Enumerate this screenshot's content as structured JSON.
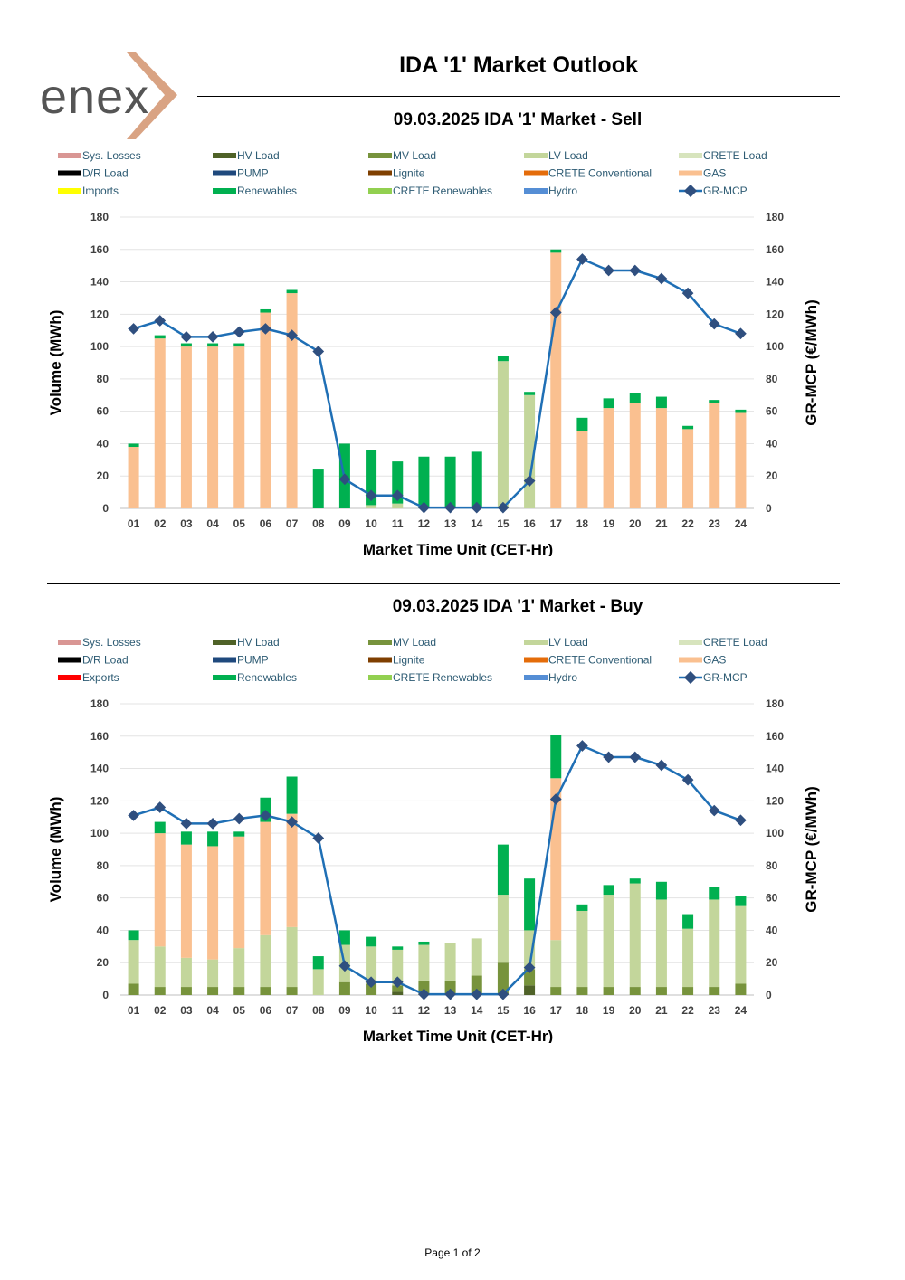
{
  "header": {
    "brand": "enex",
    "title": "IDA '1' Market Outlook",
    "footer": "Page 1 of 2"
  },
  "colors": {
    "sys_losses": "#d99694",
    "hv_load": "#4f6228",
    "mv_load": "#77933c",
    "lv_load": "#c3d69b",
    "crete_load": "#d7e4bd",
    "dr_load": "#000000",
    "pump": "#1f497d",
    "lignite": "#7f3f00",
    "crete_conventional": "#e46c0a",
    "gas": "#fac090",
    "imports": "#ffff00",
    "exports": "#ff0000",
    "renewables": "#00b050",
    "crete_renewables": "#92d050",
    "hydro": "#558ed5",
    "mcp_line": "#1f6fb5",
    "mcp_marker": "#2f4f7f",
    "logo_orange": "#d9a383",
    "logo_gray": "#555555"
  },
  "chart_data": [
    {
      "type": "bar",
      "title": "09.03.2025  IDA '1' Market - Sell",
      "xlabel": "Market Time Unit (CET-Hr)",
      "ylabel": "Volume (MWh)",
      "y2label": "GR-MCP (€/MWh)",
      "ylim": [
        0,
        180
      ],
      "y2lim": [
        0,
        180
      ],
      "yticks": [
        0,
        20,
        40,
        60,
        80,
        100,
        120,
        140,
        160,
        180
      ],
      "legend": [
        {
          "name": "Sys. Losses",
          "color": "#d99694",
          "kind": "bar"
        },
        {
          "name": "HV Load",
          "color": "#4f6228",
          "kind": "bar"
        },
        {
          "name": "MV Load",
          "color": "#77933c",
          "kind": "bar"
        },
        {
          "name": "LV Load",
          "color": "#c3d69b",
          "kind": "bar"
        },
        {
          "name": "CRETE Load",
          "color": "#d7e4bd",
          "kind": "bar"
        },
        {
          "name": "D/R Load",
          "color": "#000000",
          "kind": "bar"
        },
        {
          "name": "PUMP",
          "color": "#1f497d",
          "kind": "bar"
        },
        {
          "name": "Lignite",
          "color": "#7f3f00",
          "kind": "bar"
        },
        {
          "name": "CRETE Conventional",
          "color": "#e46c0a",
          "kind": "bar"
        },
        {
          "name": "GAS",
          "color": "#fac090",
          "kind": "bar"
        },
        {
          "name": "Imports",
          "color": "#ffff00",
          "kind": "bar"
        },
        {
          "name": "Renewables",
          "color": "#00b050",
          "kind": "bar"
        },
        {
          "name": "CRETE Renewables",
          "color": "#92d050",
          "kind": "bar"
        },
        {
          "name": "Hydro",
          "color": "#558ed5",
          "kind": "bar"
        },
        {
          "name": "GR-MCP",
          "color": "#1f6fb5",
          "kind": "line"
        }
      ],
      "categories": [
        "01",
        "02",
        "03",
        "04",
        "05",
        "06",
        "07",
        "08",
        "09",
        "10",
        "11",
        "12",
        "13",
        "14",
        "15",
        "16",
        "17",
        "18",
        "19",
        "20",
        "21",
        "22",
        "23",
        "24"
      ],
      "series": [
        {
          "name": "LV Load",
          "color": "#c3d69b",
          "values": [
            0,
            0,
            0,
            0,
            0,
            0,
            0,
            0,
            0,
            2,
            3,
            0,
            0,
            0,
            91,
            70,
            0,
            0,
            0,
            0,
            0,
            0,
            0,
            0
          ]
        },
        {
          "name": "GAS",
          "color": "#fac090",
          "values": [
            38,
            105,
            100,
            100,
            100,
            121,
            133,
            0,
            0,
            0,
            0,
            0,
            0,
            0,
            0,
            0,
            158,
            48,
            62,
            65,
            62,
            49,
            65,
            59
          ]
        },
        {
          "name": "Renewables",
          "color": "#00b050",
          "values": [
            2,
            2,
            2,
            2,
            2,
            2,
            2,
            24,
            40,
            34,
            26,
            32,
            32,
            35,
            3,
            2,
            2,
            8,
            6,
            6,
            7,
            2,
            2,
            2
          ]
        }
      ],
      "line": {
        "name": "GR-MCP",
        "values": [
          111,
          116,
          106,
          106,
          109,
          111,
          107,
          97,
          18,
          8,
          8,
          0.5,
          0.5,
          0.5,
          0.5,
          17,
          121,
          154,
          147,
          147,
          142,
          133,
          114,
          108
        ]
      }
    },
    {
      "type": "bar",
      "title": "09.03.2025  IDA '1' Market - Buy",
      "xlabel": "Market Time Unit (CET-Hr)",
      "ylabel": "Volume (MWh)",
      "y2label": "GR-MCP (€/MWh)",
      "ylim": [
        0,
        180
      ],
      "y2lim": [
        0,
        180
      ],
      "yticks": [
        0,
        20,
        40,
        60,
        80,
        100,
        120,
        140,
        160,
        180
      ],
      "legend": [
        {
          "name": "Sys. Losses",
          "color": "#d99694",
          "kind": "bar"
        },
        {
          "name": "HV Load",
          "color": "#4f6228",
          "kind": "bar"
        },
        {
          "name": "MV Load",
          "color": "#77933c",
          "kind": "bar"
        },
        {
          "name": "LV Load",
          "color": "#c3d69b",
          "kind": "bar"
        },
        {
          "name": "CRETE Load",
          "color": "#d7e4bd",
          "kind": "bar"
        },
        {
          "name": "D/R Load",
          "color": "#000000",
          "kind": "bar"
        },
        {
          "name": "PUMP",
          "color": "#1f497d",
          "kind": "bar"
        },
        {
          "name": "Lignite",
          "color": "#7f3f00",
          "kind": "bar"
        },
        {
          "name": "CRETE Conventional",
          "color": "#e46c0a",
          "kind": "bar"
        },
        {
          "name": "GAS",
          "color": "#fac090",
          "kind": "bar"
        },
        {
          "name": "Exports",
          "color": "#ff0000",
          "kind": "bar"
        },
        {
          "name": "Renewables",
          "color": "#00b050",
          "kind": "bar"
        },
        {
          "name": "CRETE Renewables",
          "color": "#92d050",
          "kind": "bar"
        },
        {
          "name": "Hydro",
          "color": "#558ed5",
          "kind": "bar"
        },
        {
          "name": "GR-MCP",
          "color": "#1f6fb5",
          "kind": "line"
        }
      ],
      "categories": [
        "01",
        "02",
        "03",
        "04",
        "05",
        "06",
        "07",
        "08",
        "09",
        "10",
        "11",
        "12",
        "13",
        "14",
        "15",
        "16",
        "17",
        "18",
        "19",
        "20",
        "21",
        "22",
        "23",
        "24"
      ],
      "series": [
        {
          "name": "HV Load",
          "color": "#4f6228",
          "values": [
            0,
            0,
            0,
            0,
            0,
            0,
            0,
            0,
            0,
            0,
            2,
            0,
            0,
            0,
            0,
            6,
            0,
            0,
            0,
            0,
            0,
            0,
            0,
            0
          ]
        },
        {
          "name": "MV Load",
          "color": "#77933c",
          "values": [
            7,
            5,
            5,
            5,
            5,
            5,
            5,
            0,
            8,
            7,
            4,
            9,
            9,
            12,
            20,
            10,
            5,
            5,
            5,
            5,
            5,
            5,
            5,
            7
          ]
        },
        {
          "name": "LV Load",
          "color": "#c3d69b",
          "values": [
            27,
            25,
            18,
            17,
            24,
            32,
            37,
            16,
            23,
            23,
            22,
            22,
            23,
            23,
            42,
            24,
            29,
            47,
            57,
            64,
            54,
            36,
            54,
            48
          ]
        },
        {
          "name": "GAS",
          "color": "#fac090",
          "values": [
            0,
            70,
            70,
            70,
            69,
            70,
            70,
            0,
            0,
            0,
            0,
            0,
            0,
            0,
            0,
            0,
            100,
            0,
            0,
            0,
            0,
            0,
            0,
            0
          ]
        },
        {
          "name": "Renewables",
          "color": "#00b050",
          "values": [
            6,
            7,
            8,
            9,
            3,
            15,
            23,
            8,
            9,
            6,
            2,
            2,
            0,
            0,
            31,
            32,
            27,
            4,
            6,
            3,
            11,
            9,
            8,
            6
          ]
        }
      ],
      "line": {
        "name": "GR-MCP",
        "values": [
          111,
          116,
          106,
          106,
          109,
          111,
          107,
          97,
          18,
          8,
          8,
          0.5,
          0.5,
          0.5,
          0.5,
          17,
          121,
          154,
          147,
          147,
          142,
          133,
          114,
          108
        ]
      }
    }
  ]
}
